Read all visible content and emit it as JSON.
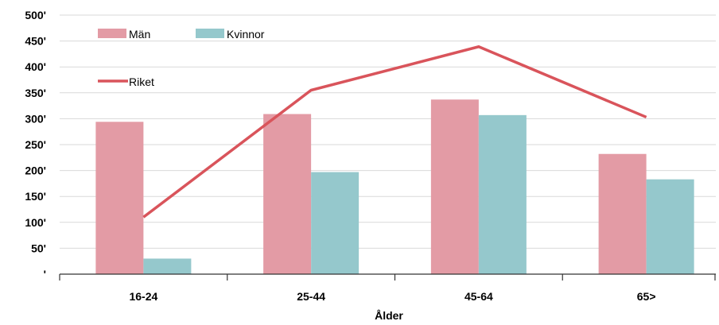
{
  "chart_data": {
    "type": "bar",
    "title": "",
    "xlabel": "Ålder",
    "ylabel": "",
    "categories": [
      "16-24",
      "25-44",
      "45-64",
      "65>"
    ],
    "ylim": [
      0,
      500
    ],
    "yticks": [
      0,
      50,
      100,
      150,
      200,
      250,
      300,
      350,
      400,
      450,
      500
    ],
    "ytick_labels": [
      "'",
      "50'",
      "100'",
      "150'",
      "200'",
      "250'",
      "300'",
      "350'",
      "400'",
      "450'",
      "500'"
    ],
    "grid": true,
    "legend_position": "top-left",
    "series": [
      {
        "name": "Män",
        "kind": "bar",
        "color": "#e39ba5",
        "values": [
          294,
          309,
          337,
          232
        ]
      },
      {
        "name": "Kvinnor",
        "kind": "bar",
        "color": "#95c8cc",
        "values": [
          30,
          197,
          307,
          183
        ]
      },
      {
        "name": "Riket",
        "kind": "line",
        "color": "#d9545b",
        "values": [
          110,
          355,
          439,
          303
        ]
      }
    ]
  }
}
